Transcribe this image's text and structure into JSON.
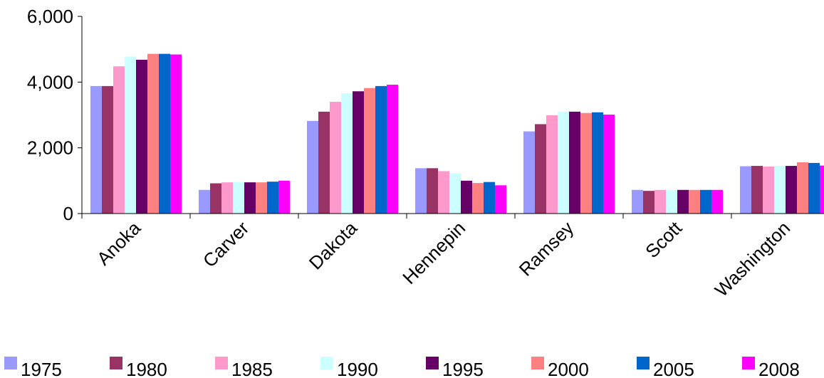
{
  "chart_data": {
    "type": "bar",
    "categories": [
      "Anoka",
      "Carver",
      "Dakota",
      "Hennepin",
      "Ramsey",
      "Scott",
      "Washington"
    ],
    "series": [
      {
        "name": "1975",
        "color": "#9999ff",
        "values": [
          3880,
          720,
          2820,
          1380,
          2500,
          720,
          1440
        ]
      },
      {
        "name": "1980",
        "color": "#993366",
        "values": [
          3880,
          920,
          3100,
          1380,
          2720,
          690,
          1450
        ]
      },
      {
        "name": "1985",
        "color": "#ff99cc",
        "values": [
          4480,
          950,
          3400,
          1290,
          2990,
          720,
          1430
        ]
      },
      {
        "name": "1990",
        "color": "#ccffff",
        "values": [
          4780,
          960,
          3660,
          1230,
          3100,
          720,
          1450
        ]
      },
      {
        "name": "1995",
        "color": "#660066",
        "values": [
          4680,
          950,
          3720,
          1000,
          3100,
          720,
          1450
        ]
      },
      {
        "name": "2000",
        "color": "#ff8080",
        "values": [
          4860,
          950,
          3820,
          930,
          3060,
          720,
          1560
        ]
      },
      {
        "name": "2005",
        "color": "#0066cc",
        "values": [
          4860,
          970,
          3880,
          960,
          3080,
          720,
          1540
        ]
      },
      {
        "name": "2008",
        "color": "#ff00ff",
        "values": [
          4840,
          1000,
          3920,
          860,
          3010,
          720,
          1460
        ]
      }
    ],
    "ylim": [
      0,
      6000
    ],
    "yticks": [
      "0",
      "2,000",
      "4,000",
      "6,000"
    ],
    "ytick_values": [
      0,
      2000,
      4000,
      6000
    ],
    "title": "",
    "xlabel": "",
    "ylabel": "",
    "grid": false,
    "legend_position": "bottom"
  }
}
